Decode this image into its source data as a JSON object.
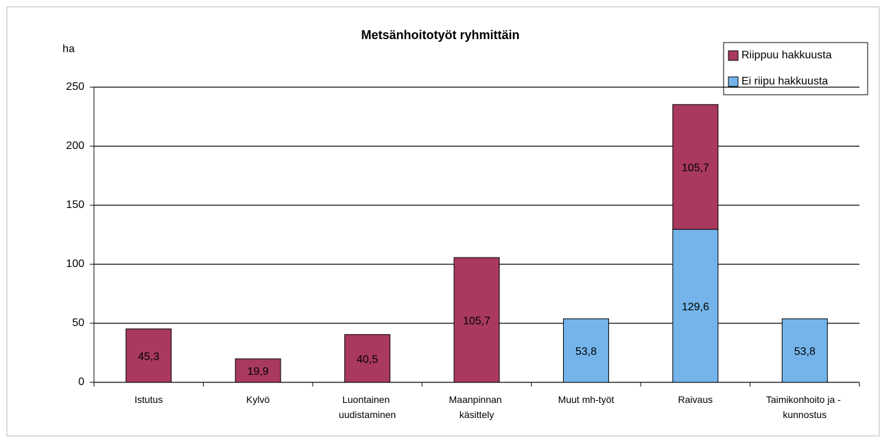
{
  "chart_data": {
    "type": "stacked_bar",
    "title": "Metsänhoitotyöt ryhmittäin",
    "ylabel": "ha",
    "categories": [
      "Istutus",
      "Kylvö",
      "Luontainen uudistaminen",
      "Maanpinnan käsittely",
      "Muut mh-työt",
      "Raivaus",
      "Taimikonhoito ja - kunnostus"
    ],
    "series": [
      {
        "name": "Ei riipu hakkuusta",
        "color": "#74b4ea",
        "values": [
          null,
          null,
          null,
          null,
          53.8,
          129.6,
          53.8
        ],
        "value_labels": [
          null,
          null,
          null,
          null,
          "53,8",
          "129,6",
          "53,8"
        ]
      },
      {
        "name": "Riippuu hakkuusta",
        "color": "#a93a5d",
        "values": [
          45.3,
          19.9,
          40.5,
          105.7,
          null,
          105.7,
          null
        ],
        "value_labels": [
          "45,3",
          "19,9",
          "40,5",
          "105,7",
          null,
          "105,7",
          null
        ]
      }
    ],
    "ylim": [
      0,
      250
    ],
    "yticks": [
      0,
      50,
      100,
      150,
      200,
      250
    ],
    "grid": true,
    "legend": "top-right"
  }
}
